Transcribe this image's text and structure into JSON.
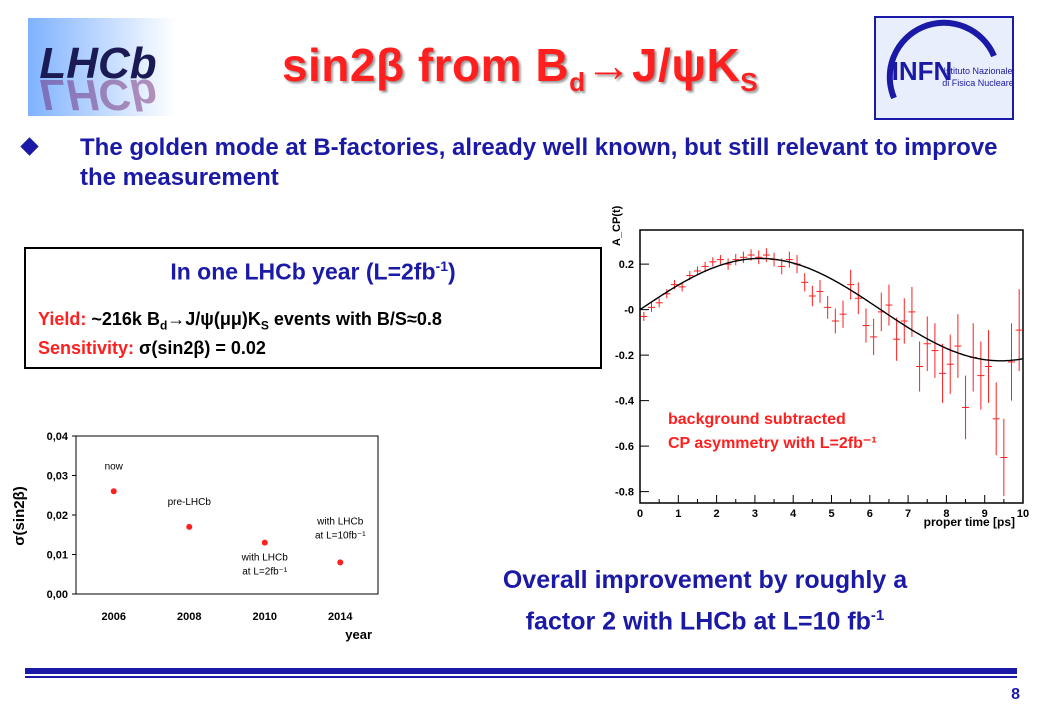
{
  "title": {
    "part1": "sin2β from B",
    "sub1": "d",
    "part2": "J/ψK",
    "sub2": "S"
  },
  "bullet": {
    "text": "The golden mode at B-factories, already well known, but still relevant to improve the measurement"
  },
  "box": {
    "heading": "In one LHCb year (L=2fb",
    "heading_sup": "-1",
    "heading_end": ")",
    "yield_label": "Yield:",
    "yield_prefix": "~216k",
    "yield_mode": "B",
    "yield_mode_sub": "d",
    "yield_mode_rest": "J/ψ(μμ)K",
    "yield_mode_sub2": "S",
    "yield_suffix": "events with B/S≈0.8",
    "sens_label": "Sensitivity:",
    "sens_value": "σ(sin2β) = 0.02"
  },
  "conclusion": {
    "line1": "Overall improvement by roughly a",
    "line2": "factor 2 with LHCb at L=10 fb",
    "sup": "-1"
  },
  "page_number": "8",
  "logos": {
    "lhcb": "LHCb",
    "infn_name": "INFN",
    "infn_sub1": "Istituto Nazionale",
    "infn_sub2": "di Fisica Nucleare"
  },
  "chart_data": [
    {
      "type": "line",
      "ylabel": "A_CP(t)",
      "xlabel": "proper time [ps]",
      "annotation": [
        "background subtracted",
        "CP asymmetry with L=2fb⁻¹"
      ],
      "xlim": [
        0,
        10
      ],
      "ylim": [
        -0.85,
        0.35
      ],
      "x_ticks": [
        "0",
        "1",
        "2",
        "3",
        "4",
        "5",
        "6",
        "7",
        "8",
        "9",
        "10"
      ],
      "y_ticks": [
        {
          "v": 0.2,
          "label": "0.2"
        },
        {
          "v": 0,
          "label": "-0"
        },
        {
          "v": -0.2,
          "label": "-0.2"
        },
        {
          "v": -0.4,
          "label": "-0.4"
        },
        {
          "v": -0.6,
          "label": "-0.6"
        },
        {
          "v": -0.8,
          "label": "-0.8"
        }
      ],
      "curve": {
        "amplitude": 0.225,
        "omega": 0.5
      },
      "points": [
        {
          "x": 0.1,
          "y": -0.03,
          "e": 0.02
        },
        {
          "x": 0.3,
          "y": 0.01,
          "e": 0.02
        },
        {
          "x": 0.5,
          "y": 0.03,
          "e": 0.02
        },
        {
          "x": 0.7,
          "y": 0.07,
          "e": 0.02
        },
        {
          "x": 0.9,
          "y": 0.11,
          "e": 0.02
        },
        {
          "x": 1.1,
          "y": 0.1,
          "e": 0.02
        },
        {
          "x": 1.3,
          "y": 0.15,
          "e": 0.02
        },
        {
          "x": 1.5,
          "y": 0.17,
          "e": 0.02
        },
        {
          "x": 1.7,
          "y": 0.19,
          "e": 0.02
        },
        {
          "x": 1.9,
          "y": 0.21,
          "e": 0.02
        },
        {
          "x": 2.1,
          "y": 0.22,
          "e": 0.02
        },
        {
          "x": 2.3,
          "y": 0.2,
          "e": 0.025
        },
        {
          "x": 2.5,
          "y": 0.22,
          "e": 0.025
        },
        {
          "x": 2.7,
          "y": 0.23,
          "e": 0.025
        },
        {
          "x": 2.9,
          "y": 0.24,
          "e": 0.025
        },
        {
          "x": 3.1,
          "y": 0.23,
          "e": 0.03
        },
        {
          "x": 3.3,
          "y": 0.24,
          "e": 0.03
        },
        {
          "x": 3.5,
          "y": 0.22,
          "e": 0.03
        },
        {
          "x": 3.7,
          "y": 0.19,
          "e": 0.035
        },
        {
          "x": 3.9,
          "y": 0.22,
          "e": 0.035
        },
        {
          "x": 4.1,
          "y": 0.2,
          "e": 0.04
        },
        {
          "x": 4.3,
          "y": 0.12,
          "e": 0.04
        },
        {
          "x": 4.5,
          "y": 0.06,
          "e": 0.045
        },
        {
          "x": 4.7,
          "y": 0.08,
          "e": 0.05
        },
        {
          "x": 4.9,
          "y": 0.01,
          "e": 0.05
        },
        {
          "x": 5.1,
          "y": -0.05,
          "e": 0.055
        },
        {
          "x": 5.3,
          "y": -0.02,
          "e": 0.06
        },
        {
          "x": 5.5,
          "y": 0.11,
          "e": 0.065
        },
        {
          "x": 5.7,
          "y": 0.05,
          "e": 0.07
        },
        {
          "x": 5.9,
          "y": -0.07,
          "e": 0.075
        },
        {
          "x": 6.1,
          "y": -0.12,
          "e": 0.08
        },
        {
          "x": 6.3,
          "y": -0.01,
          "e": 0.085
        },
        {
          "x": 6.5,
          "y": 0.02,
          "e": 0.09
        },
        {
          "x": 6.7,
          "y": -0.13,
          "e": 0.095
        },
        {
          "x": 6.9,
          "y": -0.05,
          "e": 0.1
        },
        {
          "x": 7.1,
          "y": -0.01,
          "e": 0.11
        },
        {
          "x": 7.3,
          "y": -0.25,
          "e": 0.11
        },
        {
          "x": 7.5,
          "y": -0.15,
          "e": 0.12
        },
        {
          "x": 7.7,
          "y": -0.18,
          "e": 0.12
        },
        {
          "x": 7.9,
          "y": -0.28,
          "e": 0.13
        },
        {
          "x": 8.1,
          "y": -0.24,
          "e": 0.13
        },
        {
          "x": 8.3,
          "y": -0.16,
          "e": 0.14
        },
        {
          "x": 8.5,
          "y": -0.43,
          "e": 0.14
        },
        {
          "x": 8.7,
          "y": -0.21,
          "e": 0.15
        },
        {
          "x": 8.9,
          "y": -0.29,
          "e": 0.15
        },
        {
          "x": 9.1,
          "y": -0.25,
          "e": 0.16
        },
        {
          "x": 9.3,
          "y": -0.48,
          "e": 0.16
        },
        {
          "x": 9.5,
          "y": -0.65,
          "e": 0.17
        },
        {
          "x": 9.7,
          "y": -0.23,
          "e": 0.17
        },
        {
          "x": 9.9,
          "y": -0.09,
          "e": 0.18
        }
      ]
    },
    {
      "type": "scatter",
      "ylabel": "σ(sin2β)",
      "xlabel": "year",
      "categories": [
        "2006",
        "2008",
        "2010",
        "2014"
      ],
      "y_ticks": [
        "0,00",
        "0,01",
        "0,02",
        "0,03",
        "0,04"
      ],
      "ylim": [
        0,
        0.04
      ],
      "values": [
        0.026,
        0.017,
        0.013,
        0.008
      ],
      "point_labels": [
        [
          "now"
        ],
        [
          "pre-LHCb"
        ],
        [
          "with LHCb",
          "at L=2fb⁻¹"
        ],
        [
          "with LHCb",
          "at L=10fb⁻¹"
        ]
      ]
    }
  ],
  "colors": {
    "title": "#ff1f1f",
    "blue": "#1a1aa6",
    "red": "#ff1f1f"
  }
}
